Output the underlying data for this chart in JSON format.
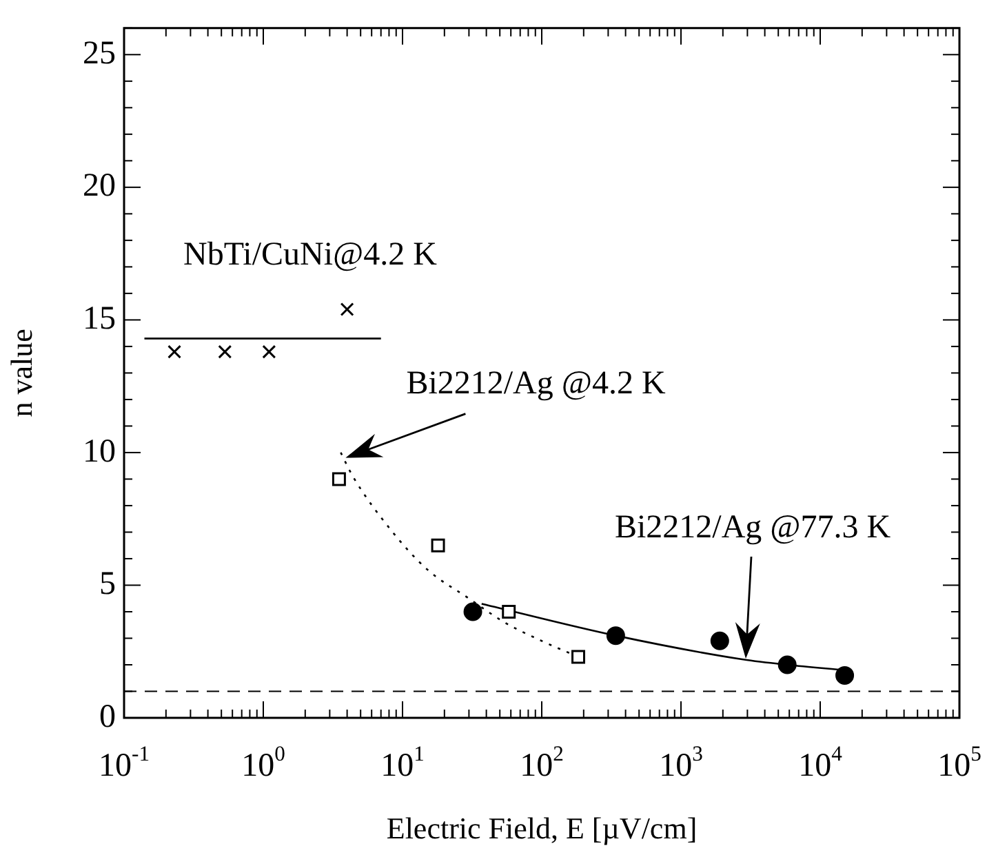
{
  "chart_data": {
    "type": "scatter",
    "xlabel": "Electric Field, E [µV/cm]",
    "ylabel": "n value",
    "log": "x",
    "xlim": [
      0.1,
      100000
    ],
    "xticks": [
      {
        "value": 0.1,
        "label": "10$^{-1}$"
      },
      {
        "value": 1,
        "label": "10$^{0}$"
      },
      {
        "value": 10,
        "label": "10$^{1}$"
      },
      {
        "value": 100,
        "label": "10$^{2}$"
      },
      {
        "value": 1000,
        "label": "10$^{3}$"
      },
      {
        "value": 10000,
        "label": "10$^{4}$"
      },
      {
        "value": 100000,
        "label": "10$^{5}$"
      }
    ],
    "ylim": [
      0,
      26
    ],
    "yticks": [
      0,
      5,
      10,
      15,
      20,
      25
    ],
    "series": [
      {
        "name": "NbTi/CuNi@4.2 K",
        "marker": "cross",
        "color": "#000000",
        "x": [
          0.23,
          0.53,
          1.1,
          4.0
        ],
        "values": [
          13.8,
          13.8,
          13.8,
          15.4
        ]
      },
      {
        "type": "line",
        "marker": "none",
        "line_style": "solid",
        "color": "#000000",
        "x": [
          0.14,
          7
        ],
        "values": [
          14.3,
          14.3
        ]
      },
      {
        "marker": "square",
        "color": "#000000",
        "x": [
          3.5,
          18,
          58,
          183
        ],
        "values": [
          9.0,
          6.5,
          4.0,
          2.3
        ]
      },
      {
        "type": "line",
        "marker": "none",
        "line_style": "dotted",
        "color": "#000000",
        "x": [
          3.6,
          4.4,
          8.2,
          15,
          30,
          54,
          100,
          183
        ],
        "values": [
          10,
          9.1,
          7.1,
          5.6,
          4.5,
          3.6,
          2.9,
          2.3
        ]
      },
      {
        "marker": "circle",
        "color": "#000000",
        "x": [
          32,
          340,
          1900,
          5800,
          15000
        ],
        "values": [
          4.0,
          3.1,
          2.9,
          2.0,
          1.6
        ]
      },
      {
        "type": "line",
        "marker": "none",
        "line_style": "solid",
        "color": "#000000",
        "x": [
          37,
          340,
          2800,
          5800,
          15000
        ],
        "values": [
          4.3,
          3.1,
          2.2,
          2.0,
          1.8
        ]
      }
    ],
    "annotations": [
      {
        "text": "Bi2212/Ag @4.2 K",
        "x": 3.9,
        "y": 9.8
      },
      "Bi2212/Ag @77.3 K"
    ],
    "ref_lines": [
      {
        "axis": "y",
        "value": 1,
        "color": "#000000",
        "line_style": "dashed"
      }
    ]
  }
}
